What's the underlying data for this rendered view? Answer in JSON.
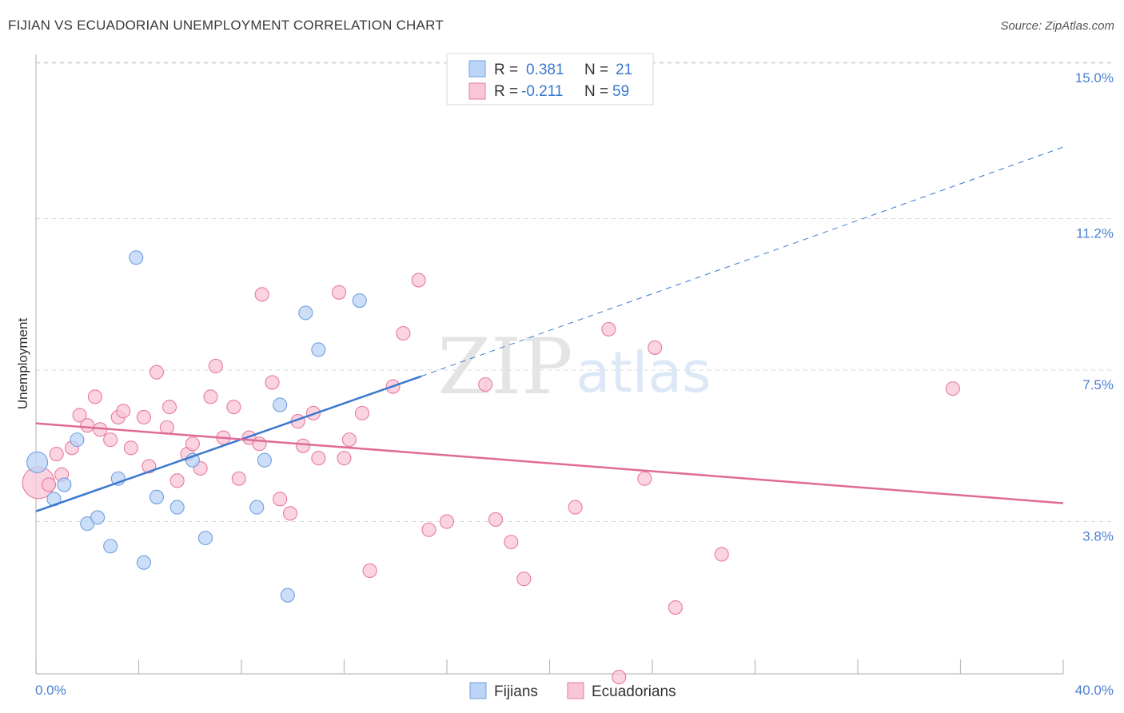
{
  "header": {
    "title": "FIJIAN VS ECUADORIAN UNEMPLOYMENT CORRELATION CHART",
    "source": "Source: ZipAtlas.com"
  },
  "watermark": {
    "zip": "ZIP",
    "atlas": "atlas"
  },
  "legend": {
    "rows": [
      {
        "r_label": "R =",
        "r_value": "0.381",
        "n_label": "N =",
        "n_value": "21"
      },
      {
        "r_label": "R =",
        "r_value": "-0.211",
        "n_label": "N =",
        "n_value": "59"
      }
    ]
  },
  "colors": {
    "fijians": "#6fa0e0",
    "fijians_fill": "#bcd4f5",
    "ecuadorians": "#e87aa0",
    "ecuadorians_fill": "#f8c6d6",
    "blue_line": "#3a78d0",
    "pink_line": "#e06a98",
    "grid": "#d8d8d8",
    "label_blue": "#4a7fd0"
  },
  "chart_data": {
    "type": "scatter",
    "title": "FIJIAN VS ECUADORIAN UNEMPLOYMENT CORRELATION CHART",
    "xlabel": "",
    "ylabel": "Unemployment",
    "xlim": [
      0,
      40
    ],
    "ylim": [
      0,
      15.5
    ],
    "x_tick_labels": [
      "0.0%",
      "40.0%"
    ],
    "y_ticks": [
      3.8,
      7.5,
      11.2,
      15.0
    ],
    "y_tick_labels": [
      "3.8%",
      "7.5%",
      "11.2%",
      "15.0%"
    ],
    "grid": true,
    "legend_position": "bottom",
    "series": [
      {
        "name": "Fijians",
        "points": [
          [
            0.05,
            5.6
          ],
          [
            0.7,
            4.7
          ],
          [
            1.1,
            5.05
          ],
          [
            1.6,
            6.15
          ],
          [
            2.0,
            4.1
          ],
          [
            2.4,
            4.25
          ],
          [
            2.9,
            3.55
          ],
          [
            3.2,
            5.2
          ],
          [
            3.9,
            10.6
          ],
          [
            4.2,
            3.15
          ],
          [
            4.7,
            4.75
          ],
          [
            5.5,
            4.5
          ],
          [
            6.1,
            5.65
          ],
          [
            6.6,
            3.75
          ],
          [
            8.6,
            4.5
          ],
          [
            8.9,
            5.65
          ],
          [
            9.5,
            7.0
          ],
          [
            9.8,
            2.35
          ],
          [
            10.5,
            9.25
          ],
          [
            11.0,
            8.35
          ],
          [
            12.6,
            9.55
          ]
        ],
        "trend": {
          "x0": 0,
          "y0": 4.4,
          "x1": 15.0,
          "y1": 7.7,
          "dash_x1": 40.0,
          "dash_y1": 13.3
        }
      },
      {
        "name": "Ecuadorians",
        "points": [
          [
            0.1,
            5.1
          ],
          [
            0.5,
            5.05
          ],
          [
            0.8,
            5.8
          ],
          [
            1.0,
            5.3
          ],
          [
            1.4,
            5.95
          ],
          [
            1.7,
            6.75
          ],
          [
            2.0,
            6.5
          ],
          [
            2.3,
            7.2
          ],
          [
            2.5,
            6.4
          ],
          [
            2.9,
            6.15
          ],
          [
            3.2,
            6.7
          ],
          [
            3.4,
            6.85
          ],
          [
            3.7,
            5.95
          ],
          [
            4.2,
            6.7
          ],
          [
            4.4,
            5.5
          ],
          [
            4.7,
            7.8
          ],
          [
            5.1,
            6.45
          ],
          [
            5.2,
            6.95
          ],
          [
            5.5,
            5.15
          ],
          [
            5.9,
            5.8
          ],
          [
            6.1,
            6.05
          ],
          [
            6.4,
            5.45
          ],
          [
            6.8,
            7.2
          ],
          [
            7.0,
            7.95
          ],
          [
            7.3,
            6.2
          ],
          [
            7.7,
            6.95
          ],
          [
            7.9,
            5.2
          ],
          [
            8.3,
            6.2
          ],
          [
            8.7,
            6.05
          ],
          [
            8.8,
            9.7
          ],
          [
            9.2,
            7.55
          ],
          [
            9.5,
            4.7
          ],
          [
            9.9,
            4.35
          ],
          [
            10.2,
            6.6
          ],
          [
            10.4,
            6.0
          ],
          [
            10.8,
            6.8
          ],
          [
            11.0,
            5.7
          ],
          [
            11.8,
            9.75
          ],
          [
            12.0,
            5.7
          ],
          [
            12.2,
            6.15
          ],
          [
            12.7,
            6.8
          ],
          [
            13.0,
            2.95
          ],
          [
            13.9,
            7.45
          ],
          [
            14.3,
            8.75
          ],
          [
            14.9,
            10.05
          ],
          [
            15.3,
            3.95
          ],
          [
            16.0,
            4.15
          ],
          [
            17.5,
            7.5
          ],
          [
            17.9,
            4.2
          ],
          [
            18.5,
            3.65
          ],
          [
            19.0,
            2.75
          ],
          [
            21.0,
            4.5
          ],
          [
            22.3,
            8.85
          ],
          [
            23.7,
            5.2
          ],
          [
            24.1,
            8.4
          ],
          [
            24.9,
            2.05
          ],
          [
            26.7,
            3.35
          ],
          [
            35.7,
            7.4
          ],
          [
            22.7,
            0.35
          ]
        ],
        "trend": {
          "x0": 0,
          "y0": 6.55,
          "x1": 40.0,
          "y1": 4.6
        }
      }
    ]
  }
}
